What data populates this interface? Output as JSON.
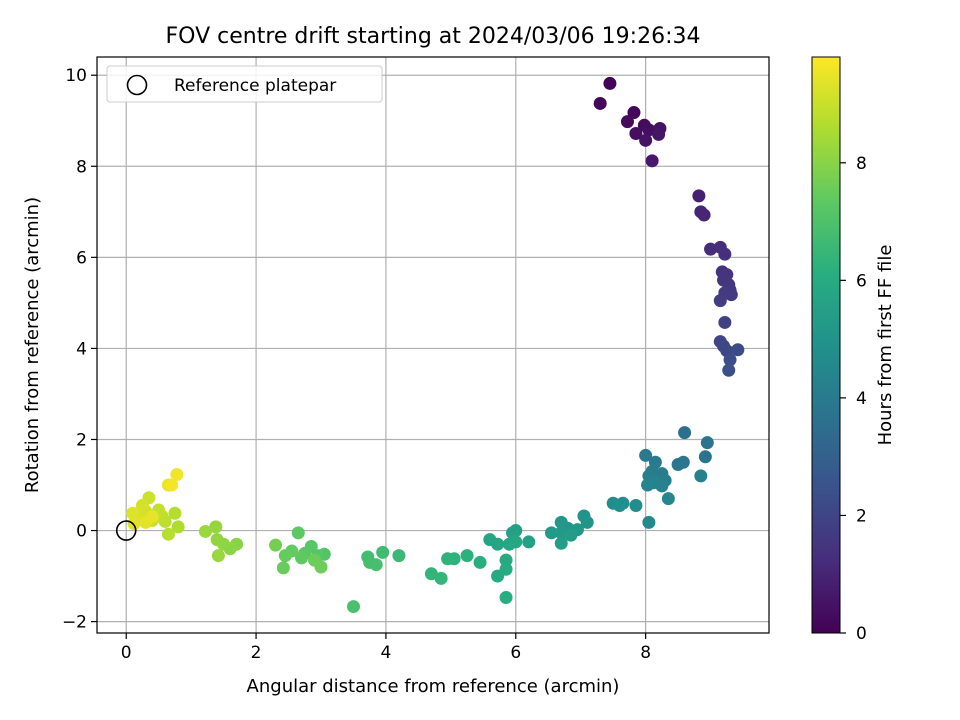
{
  "chart_data": {
    "type": "scatter",
    "title": "FOV centre drift starting at 2024/03/06 19:26:34",
    "xlabel": "Angular distance from reference (arcmin)",
    "ylabel": "Rotation from reference (arcmin)",
    "xlim": [
      -0.45,
      9.9
    ],
    "ylim": [
      -2.25,
      10.4
    ],
    "xticks": [
      0,
      2,
      4,
      6,
      8
    ],
    "yticks": [
      -2,
      0,
      2,
      4,
      6,
      8,
      10
    ],
    "xtick_labels": [
      "0",
      "2",
      "4",
      "6",
      "8"
    ],
    "ytick_labels": [
      "−2",
      "0",
      "2",
      "4",
      "6",
      "8",
      "10"
    ],
    "grid": true,
    "legend": {
      "position": "top-left",
      "label": "Reference platepar"
    },
    "reference_point": {
      "x": 0,
      "y": 0
    },
    "colormap": "viridis",
    "colorbar": {
      "label": "Hours from first FF file",
      "range": [
        0,
        9.8
      ],
      "ticks": [
        0,
        2,
        4,
        6,
        8
      ],
      "tick_labels": [
        "0",
        "2",
        "4",
        "6",
        "8"
      ]
    },
    "points": [
      [
        7.45,
        9.82,
        0.1
      ],
      [
        7.3,
        9.38,
        0.15
      ],
      [
        7.82,
        9.18,
        0.2
      ],
      [
        7.72,
        8.98,
        0.25
      ],
      [
        7.98,
        8.9,
        0.3
      ],
      [
        7.85,
        8.72,
        0.35
      ],
      [
        8.05,
        8.8,
        0.4
      ],
      [
        8.22,
        8.83,
        0.45
      ],
      [
        8.0,
        8.57,
        0.5
      ],
      [
        8.2,
        8.7,
        0.55
      ],
      [
        8.1,
        8.12,
        0.65
      ],
      [
        8.82,
        7.35,
        0.9
      ],
      [
        8.85,
        7.0,
        1.0
      ],
      [
        8.9,
        6.93,
        1.05
      ],
      [
        9.0,
        6.18,
        1.2
      ],
      [
        9.15,
        6.22,
        1.25
      ],
      [
        9.22,
        6.07,
        1.3
      ],
      [
        9.18,
        5.68,
        1.4
      ],
      [
        9.25,
        5.62,
        1.45
      ],
      [
        9.2,
        5.5,
        1.5
      ],
      [
        9.28,
        5.4,
        1.55
      ],
      [
        9.3,
        5.28,
        1.6
      ],
      [
        9.22,
        5.22,
        1.65
      ],
      [
        9.32,
        5.18,
        1.7
      ],
      [
        9.15,
        5.05,
        1.75
      ],
      [
        9.22,
        4.57,
        1.85
      ],
      [
        9.15,
        4.15,
        2.0
      ],
      [
        9.2,
        4.05,
        2.05
      ],
      [
        9.25,
        3.95,
        2.1
      ],
      [
        9.42,
        3.97,
        2.2
      ],
      [
        9.3,
        3.75,
        2.3
      ],
      [
        9.28,
        3.52,
        2.4
      ],
      [
        8.6,
        2.15,
        3.6
      ],
      [
        8.95,
        1.93,
        3.7
      ],
      [
        8.92,
        1.62,
        3.75
      ],
      [
        8.5,
        1.45,
        3.8
      ],
      [
        8.58,
        1.5,
        3.85
      ],
      [
        8.0,
        1.65,
        3.95
      ],
      [
        8.15,
        1.5,
        4.0
      ],
      [
        8.1,
        1.3,
        4.05
      ],
      [
        8.25,
        1.25,
        4.1
      ],
      [
        8.05,
        1.2,
        4.15
      ],
      [
        8.3,
        1.1,
        4.2
      ],
      [
        8.85,
        1.2,
        4.25
      ],
      [
        8.12,
        1.05,
        4.3
      ],
      [
        8.25,
        0.98,
        4.35
      ],
      [
        8.03,
        1.0,
        4.4
      ],
      [
        8.35,
        0.7,
        4.5
      ],
      [
        8.05,
        0.18,
        4.6
      ],
      [
        7.85,
        0.55,
        4.7
      ],
      [
        7.65,
        0.6,
        4.75
      ],
      [
        7.5,
        0.6,
        4.8
      ],
      [
        7.6,
        0.55,
        4.85
      ],
      [
        7.05,
        0.32,
        5.0
      ],
      [
        7.1,
        0.18,
        5.05
      ],
      [
        6.8,
        0.05,
        5.1
      ],
      [
        6.95,
        0.02,
        5.15
      ],
      [
        6.7,
        0.18,
        5.2
      ],
      [
        6.55,
        -0.05,
        5.25
      ],
      [
        6.7,
        -0.05,
        5.3
      ],
      [
        6.85,
        -0.1,
        5.35
      ],
      [
        6.7,
        -0.28,
        5.4
      ],
      [
        6.0,
        0.0,
        5.5
      ],
      [
        5.95,
        -0.05,
        5.55
      ],
      [
        6.2,
        -0.25,
        5.6
      ],
      [
        5.6,
        -0.2,
        5.7
      ],
      [
        5.72,
        -0.3,
        5.75
      ],
      [
        5.9,
        -0.3,
        5.8
      ],
      [
        6.0,
        -0.25,
        5.85
      ],
      [
        5.85,
        -0.65,
        5.9
      ],
      [
        5.72,
        -1.0,
        5.95
      ],
      [
        5.85,
        -0.85,
        6.0
      ],
      [
        5.85,
        -1.47,
        6.05
      ],
      [
        5.45,
        -0.7,
        6.15
      ],
      [
        5.25,
        -0.55,
        6.2
      ],
      [
        5.05,
        -0.62,
        6.25
      ],
      [
        4.95,
        -0.62,
        6.3
      ],
      [
        4.7,
        -0.95,
        6.4
      ],
      [
        4.85,
        -1.05,
        6.45
      ],
      [
        4.2,
        -0.55,
        6.6
      ],
      [
        3.95,
        -0.48,
        6.7
      ],
      [
        3.72,
        -0.58,
        6.75
      ],
      [
        3.75,
        -0.7,
        6.8
      ],
      [
        3.85,
        -0.75,
        6.85
      ],
      [
        3.5,
        -1.67,
        6.9
      ],
      [
        3.05,
        -0.52,
        7.1
      ],
      [
        2.95,
        -0.55,
        7.15
      ],
      [
        2.85,
        -0.35,
        7.2
      ],
      [
        2.75,
        -0.5,
        7.25
      ],
      [
        2.65,
        -0.05,
        7.3
      ],
      [
        2.7,
        -0.6,
        7.35
      ],
      [
        2.55,
        -0.45,
        7.4
      ],
      [
        2.45,
        -0.55,
        7.45
      ],
      [
        2.42,
        -0.82,
        7.5
      ],
      [
        2.9,
        -0.65,
        7.55
      ],
      [
        3.0,
        -0.8,
        7.6
      ],
      [
        2.3,
        -0.32,
        7.7
      ],
      [
        1.7,
        -0.3,
        8.0
      ],
      [
        1.6,
        -0.4,
        8.05
      ],
      [
        1.5,
        -0.3,
        8.1
      ],
      [
        1.4,
        -0.2,
        8.15
      ],
      [
        1.38,
        0.08,
        8.2
      ],
      [
        1.42,
        -0.55,
        8.25
      ],
      [
        1.22,
        -0.02,
        8.3
      ],
      [
        0.8,
        0.08,
        8.6
      ],
      [
        0.75,
        0.38,
        8.7
      ],
      [
        0.65,
        -0.08,
        8.75
      ],
      [
        0.6,
        0.2,
        8.8
      ],
      [
        0.55,
        0.32,
        8.85
      ],
      [
        0.5,
        0.45,
        8.9
      ],
      [
        0.45,
        0.3,
        8.95
      ],
      [
        0.4,
        0.22,
        9.0
      ],
      [
        0.35,
        0.72,
        9.05
      ],
      [
        0.3,
        0.42,
        9.1
      ],
      [
        0.25,
        0.55,
        9.15
      ],
      [
        0.2,
        0.38,
        9.2
      ],
      [
        0.15,
        0.25,
        9.25
      ],
      [
        0.1,
        0.38,
        9.3
      ],
      [
        0.12,
        0.15,
        9.35
      ],
      [
        0.3,
        0.18,
        9.4
      ],
      [
        0.4,
        0.3,
        9.45
      ],
      [
        0.65,
        1.0,
        9.5
      ],
      [
        0.78,
        1.23,
        9.6
      ],
      [
        0.7,
        1.0,
        9.65
      ]
    ]
  }
}
